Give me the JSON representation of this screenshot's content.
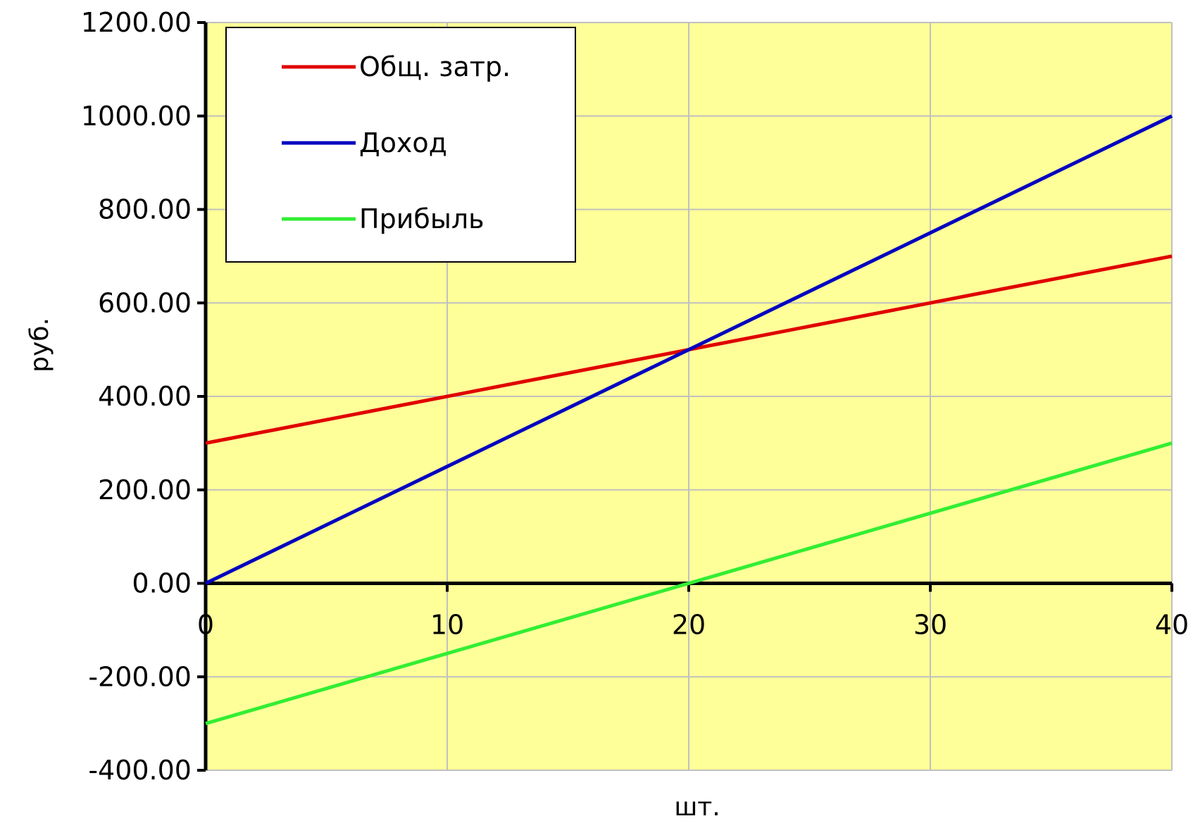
{
  "chart_data": {
    "type": "line",
    "xlabel": "шт.",
    "ylabel": "руб.",
    "xlim": [
      0,
      40
    ],
    "ylim": [
      -400,
      1200
    ],
    "x_ticks": [
      0,
      10,
      20,
      30,
      40
    ],
    "x_tick_labels": [
      "0",
      "10",
      "20",
      "30",
      "40"
    ],
    "y_ticks": [
      -400,
      -200,
      0,
      200,
      400,
      600,
      800,
      1000,
      1200
    ],
    "y_tick_labels": [
      "-400.00",
      "-200.00",
      "0.00",
      "200.00",
      "400.00",
      "600.00",
      "800.00",
      "1000.00",
      "1200.00"
    ],
    "grid": true,
    "legend_position": "top-left",
    "plot_background": "#ffff99",
    "grid_color": "#c0c0c0",
    "series": [
      {
        "name": "Общ. затр.",
        "color": "#e00000",
        "x": [
          0,
          40
        ],
        "y": [
          300,
          700
        ]
      },
      {
        "name": "Доход",
        "color": "#0000c0",
        "x": [
          0,
          40
        ],
        "y": [
          0,
          1000
        ]
      },
      {
        "name": "Прибыль",
        "color": "#33ee33",
        "x": [
          0,
          40
        ],
        "y": [
          -300,
          300
        ]
      }
    ]
  }
}
